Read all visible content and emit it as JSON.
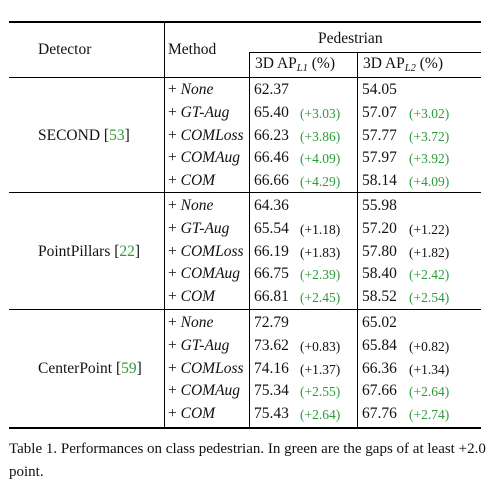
{
  "table": {
    "headers": {
      "detector": "Detector",
      "method": "Method",
      "group": "Pedestrian",
      "col1_prefix": "3D AP",
      "col1_sub": "L1",
      "col1_suffix": " (%)",
      "col2_prefix": "3D AP",
      "col2_sub": "L2",
      "col2_suffix": " (%)"
    },
    "blocks": [
      {
        "detector": "SECOND",
        "ref": "53",
        "rows": [
          {
            "plus": "+ ",
            "method": "None",
            "ap1": "62.37",
            "gap1": "",
            "gap1_green": false,
            "ap2": "54.05",
            "gap2": "",
            "gap2_green": false
          },
          {
            "plus": "+ ",
            "method": "GT-Aug",
            "ap1": "65.40",
            "gap1": "(+3.03)",
            "gap1_green": true,
            "ap2": "57.07",
            "gap2": "(+3.02)",
            "gap2_green": true
          },
          {
            "plus": "+ ",
            "method": "COMLoss",
            "ap1": "66.23",
            "gap1": "(+3.86)",
            "gap1_green": true,
            "ap2": "57.77",
            "gap2": "(+3.72)",
            "gap2_green": true
          },
          {
            "plus": "+ ",
            "method": "COMAug",
            "ap1": "66.46",
            "gap1": "(+4.09)",
            "gap1_green": true,
            "ap2": "57.97",
            "gap2": "(+3.92)",
            "gap2_green": true
          },
          {
            "plus": "+ ",
            "method": "COM",
            "ap1": "66.66",
            "gap1": "(+4.29)",
            "gap1_green": true,
            "ap2": "58.14",
            "gap2": "(+4.09)",
            "gap2_green": true
          }
        ]
      },
      {
        "detector": "PointPillars",
        "ref": "22",
        "rows": [
          {
            "plus": "+ ",
            "method": "None",
            "ap1": "64.36",
            "gap1": "",
            "gap1_green": false,
            "ap2": "55.98",
            "gap2": "",
            "gap2_green": false
          },
          {
            "plus": "+ ",
            "method": "GT-Aug",
            "ap1": "65.54",
            "gap1": "(+1.18)",
            "gap1_green": false,
            "ap2": "57.20",
            "gap2": "(+1.22)",
            "gap2_green": false
          },
          {
            "plus": "+ ",
            "method": "COMLoss",
            "ap1": "66.19",
            "gap1": "(+1.83)",
            "gap1_green": false,
            "ap2": "57.80",
            "gap2": "(+1.82)",
            "gap2_green": false
          },
          {
            "plus": "+ ",
            "method": "COMAug",
            "ap1": "66.75",
            "gap1": "(+2.39)",
            "gap1_green": true,
            "ap2": "58.40",
            "gap2": "(+2.42)",
            "gap2_green": true
          },
          {
            "plus": "+ ",
            "method": "COM",
            "ap1": "66.81",
            "gap1": "(+2.45)",
            "gap1_green": true,
            "ap2": "58.52",
            "gap2": "(+2.54)",
            "gap2_green": true
          }
        ]
      },
      {
        "detector": "CenterPoint",
        "ref": "59",
        "rows": [
          {
            "plus": "+ ",
            "method": "None",
            "ap1": "72.79",
            "gap1": "",
            "gap1_green": false,
            "ap2": "65.02",
            "gap2": "",
            "gap2_green": false
          },
          {
            "plus": "+ ",
            "method": "GT-Aug",
            "ap1": "73.62",
            "gap1": "(+0.83)",
            "gap1_green": false,
            "ap2": "65.84",
            "gap2": "(+0.82)",
            "gap2_green": false
          },
          {
            "plus": "+ ",
            "method": "COMLoss",
            "ap1": "74.16",
            "gap1": "(+1.37)",
            "gap1_green": false,
            "ap2": "66.36",
            "gap2": "(+1.34)",
            "gap2_green": false
          },
          {
            "plus": "+ ",
            "method": "COMAug",
            "ap1": "75.34",
            "gap1": "(+2.55)",
            "gap1_green": true,
            "ap2": "67.66",
            "gap2": "(+2.64)",
            "gap2_green": true
          },
          {
            "plus": "+ ",
            "method": "COM",
            "ap1": "75.43",
            "gap1": "(+2.64)",
            "gap1_green": true,
            "ap2": "67.76",
            "gap2": "(+2.74)",
            "gap2_green": true
          }
        ]
      }
    ]
  },
  "caption": "Table 1.  Performances on class pedestrian.  In green are the gaps of at least +2.0 point.",
  "colors": {
    "green": "#2e9b3a",
    "text": "#111111",
    "rule": "#000000"
  }
}
